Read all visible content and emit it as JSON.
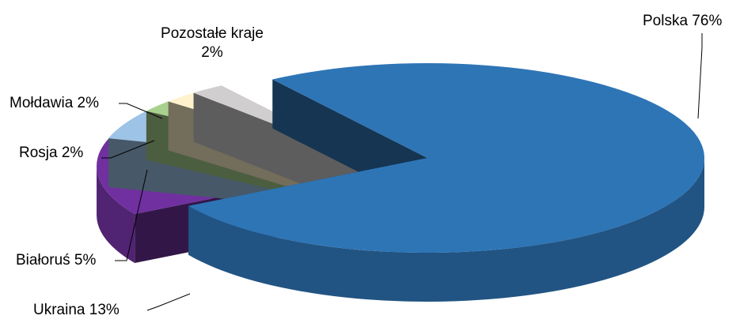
{
  "chart_data": {
    "type": "pie",
    "title": "",
    "legend": "none",
    "style": "3d-exploded",
    "slices": [
      {
        "label": "Polska",
        "value": 76,
        "label_text": "Polska 76%",
        "color": "#2E75B6"
      },
      {
        "label": "Ukraina",
        "value": 13,
        "label_text": "Ukraina 13%",
        "color": "#7030A0"
      },
      {
        "label": "Białoruś",
        "value": 5,
        "label_text": "Białoruś 5%",
        "color": "#9DC3E6"
      },
      {
        "label": "Rosja",
        "value": 2,
        "label_text": "Rosja 2%",
        "color": "#A9D18E"
      },
      {
        "label": "Mołdawia",
        "value": 2,
        "label_text": "Mołdawia 2%",
        "color": "#FFF2CC"
      },
      {
        "label": "Pozostałe kraje",
        "value": 2,
        "label_text": [
          "Pozostałe kraje",
          "2%"
        ],
        "color": "#D0CECE"
      }
    ]
  }
}
